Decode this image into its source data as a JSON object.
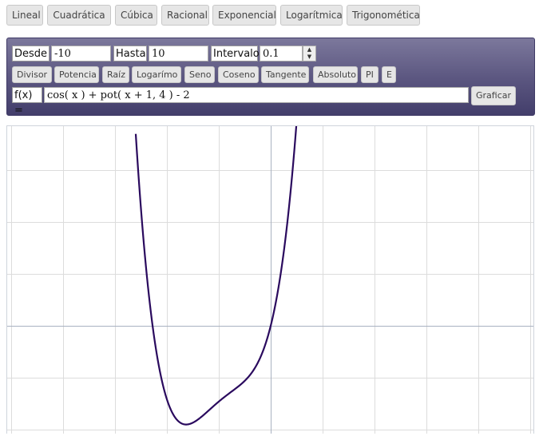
{
  "tabs": [
    {
      "label": "Lineal"
    },
    {
      "label": "Cuadrática"
    },
    {
      "label": "Cúbica"
    },
    {
      "label": "Racional"
    },
    {
      "label": "Exponencial"
    },
    {
      "label": "Logarítmica"
    },
    {
      "label": "Trigonomética"
    }
  ],
  "range": {
    "from_label": "Desde",
    "from_value": "-10",
    "to_label": "Hasta",
    "to_value": "10",
    "step_label": "Intervalo",
    "step_value": "0.1"
  },
  "functions": [
    {
      "label": "Divisor"
    },
    {
      "label": "Potencia"
    },
    {
      "label": "Raíz"
    },
    {
      "label": "Logarímo"
    },
    {
      "label": "Seno"
    },
    {
      "label": "Coseno"
    },
    {
      "label": "Tangente"
    },
    {
      "label": "Absoluto"
    },
    {
      "label": "PI"
    },
    {
      "label": "E"
    }
  ],
  "formula": {
    "label": "f(x) =",
    "value": "cos( x ) + pot( x + 1, 4 ) - 2"
  },
  "graph_button": "Graficar",
  "colors": {
    "curve": "#2a0a5e",
    "grid": "#dcdcdc",
    "axis": "#a9b2c2",
    "panel": "#5a557f"
  }
}
